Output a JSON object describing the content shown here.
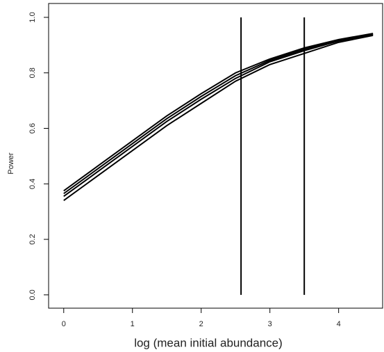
{
  "chart_data": {
    "type": "line",
    "x_label": "log (mean initial abundance)",
    "y_label": "Power",
    "x": [
      0,
      0.5,
      1,
      1.5,
      2,
      2.5,
      3,
      3.5,
      4,
      4.5
    ],
    "series": [
      {
        "color": "#000000",
        "values": [
          0.34,
          0.43,
          0.52,
          0.61,
          0.69,
          0.77,
          0.83,
          0.87,
          0.91,
          0.935
        ]
      },
      {
        "color": "#000000",
        "values": [
          0.355,
          0.445,
          0.535,
          0.625,
          0.705,
          0.78,
          0.84,
          0.88,
          0.915,
          0.938
        ]
      },
      {
        "color": "#000000",
        "values": [
          0.365,
          0.455,
          0.545,
          0.635,
          0.715,
          0.79,
          0.845,
          0.885,
          0.918,
          0.94
        ]
      },
      {
        "color": "#000000",
        "values": [
          0.375,
          0.465,
          0.555,
          0.645,
          0.725,
          0.8,
          0.85,
          0.89,
          0.92,
          0.942
        ]
      }
    ],
    "vlines": [
      2.58,
      3.5
    ],
    "vline_range": [
      0,
      1
    ],
    "xlim": [
      -0.22,
      4.64
    ],
    "ylim": [
      -0.048,
      1.05
    ],
    "xticks": [
      0,
      1,
      2,
      3,
      4
    ],
    "yticks": [
      {
        "value": 0,
        "label": "0.0"
      },
      {
        "value": 0.2,
        "label": "0.2"
      },
      {
        "value": 0.4,
        "label": "0.4"
      },
      {
        "value": 0.6,
        "label": "0.6"
      },
      {
        "value": 0.8,
        "label": "0.8"
      },
      {
        "value": 1,
        "label": "1.0"
      }
    ]
  }
}
